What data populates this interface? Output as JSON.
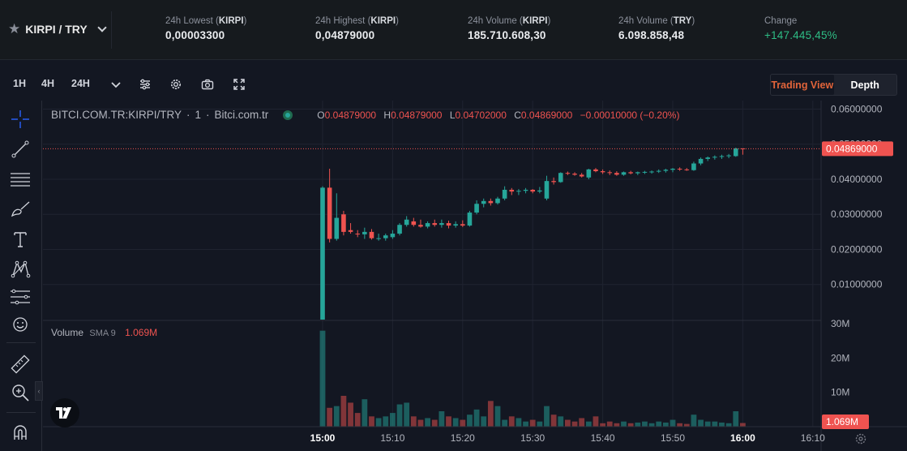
{
  "header": {
    "pair_label": "KIRPI / TRY",
    "stats": [
      {
        "label_prefix": "24h Lowest (",
        "label_unit": "KIRPI",
        "label_suffix": ")",
        "value": "0,00003300"
      },
      {
        "label_prefix": "24h Highest (",
        "label_unit": "KIRPI",
        "label_suffix": ")",
        "value": "0,04879000"
      },
      {
        "label_prefix": "24h Volume (",
        "label_unit": "KIRPI",
        "label_suffix": ")",
        "value": "185.710.608,30"
      },
      {
        "label_prefix": "24h Volume (",
        "label_unit": "TRY",
        "label_suffix": ")",
        "value": "6.098.858,48"
      },
      {
        "label_prefix": "Change",
        "label_unit": "",
        "label_suffix": "",
        "value": "+147.445,45%"
      }
    ]
  },
  "toolbar": {
    "intervals": [
      "1H",
      "4H",
      "24H"
    ],
    "icons": [
      "chevron-down-icon",
      "indicators-icon",
      "settings-icon",
      "camera-icon",
      "fullscreen-icon"
    ],
    "view_toggle": {
      "trading_view": "Trading View",
      "depth": "Depth"
    }
  },
  "left_tools": [
    "crosshair-icon",
    "trend-line-icon",
    "fib-icon",
    "brush-icon",
    "text-icon",
    "pattern-icon",
    "forecast-icon",
    "emoji-icon",
    "ruler-icon",
    "zoom-icon",
    "magnet-icon"
  ],
  "legend": {
    "symbol": "BITCI.COM.TR:KIRPI/TRY",
    "interval": "1",
    "source": "Bitci.com.tr",
    "o_label": "O",
    "o": "0.04879000",
    "h_label": "H",
    "h": "0.04879000",
    "l_label": "L",
    "l": "0.04702000",
    "c_label": "C",
    "c": "0.04869000",
    "change": "−0.00010000 (−0.20%)"
  },
  "volume_legend": {
    "label": "Volume",
    "sma": "SMA 9",
    "value": "1.069M"
  },
  "colors": {
    "up": "#26a69a",
    "down": "#ef5350",
    "accent": "#e2643a",
    "change_up": "#2ebd85"
  },
  "chart_data": {
    "type": "candlestick",
    "price_axis": {
      "ticks": [
        "0.06000000",
        "0.05000000",
        "0.04000000",
        "0.03000000",
        "0.02000000",
        "0.01000000"
      ],
      "ylim": [
        0,
        0.0615
      ],
      "last_price_label": "0.04869000",
      "last_price": 0.04869
    },
    "volume_axis": {
      "ticks": [
        "30M",
        "20M",
        "10M"
      ],
      "ylim": [
        0,
        31
      ],
      "last_volume_label": "1.069M"
    },
    "time_axis": {
      "ticks": [
        "15:00",
        "15:10",
        "15:20",
        "15:30",
        "15:40",
        "15:50",
        "16:00",
        "16:10"
      ],
      "bold_ticks": [
        "15:00",
        "16:00"
      ],
      "minutes": [
        0,
        10,
        20,
        30,
        40,
        50,
        60,
        70
      ]
    },
    "candles": [
      {
        "t": 0,
        "o": 0.0,
        "h": 0.038,
        "l": 0.0,
        "c": 0.0376,
        "v": 28.0
      },
      {
        "t": 1,
        "o": 0.0376,
        "h": 0.043,
        "l": 0.022,
        "c": 0.023,
        "v": 5.5
      },
      {
        "t": 2,
        "o": 0.023,
        "h": 0.036,
        "l": 0.0225,
        "c": 0.029,
        "v": 6.0
      },
      {
        "t": 3,
        "o": 0.03,
        "h": 0.031,
        "l": 0.024,
        "c": 0.025,
        "v": 9.0
      },
      {
        "t": 4,
        "o": 0.0255,
        "h": 0.0275,
        "l": 0.0245,
        "c": 0.025,
        "v": 7.0
      },
      {
        "t": 5,
        "o": 0.0245,
        "h": 0.0255,
        "l": 0.0235,
        "c": 0.0243,
        "v": 4.0
      },
      {
        "t": 6,
        "o": 0.0243,
        "h": 0.0262,
        "l": 0.023,
        "c": 0.025,
        "v": 8.0
      },
      {
        "t": 7,
        "o": 0.025,
        "h": 0.0258,
        "l": 0.0228,
        "c": 0.0232,
        "v": 3.0
      },
      {
        "t": 8,
        "o": 0.0232,
        "h": 0.0245,
        "l": 0.0225,
        "c": 0.0232,
        "v": 2.5
      },
      {
        "t": 9,
        "o": 0.0232,
        "h": 0.0245,
        "l": 0.0225,
        "c": 0.024,
        "v": 3.0
      },
      {
        "t": 10,
        "o": 0.0235,
        "h": 0.0255,
        "l": 0.023,
        "c": 0.0245,
        "v": 4.0
      },
      {
        "t": 11,
        "o": 0.0245,
        "h": 0.0275,
        "l": 0.024,
        "c": 0.027,
        "v": 6.5
      },
      {
        "t": 12,
        "o": 0.027,
        "h": 0.0295,
        "l": 0.0265,
        "c": 0.0285,
        "v": 7.0
      },
      {
        "t": 13,
        "o": 0.028,
        "h": 0.029,
        "l": 0.0265,
        "c": 0.027,
        "v": 3.0
      },
      {
        "t": 14,
        "o": 0.027,
        "h": 0.0285,
        "l": 0.0262,
        "c": 0.0265,
        "v": 2.0
      },
      {
        "t": 15,
        "o": 0.0265,
        "h": 0.028,
        "l": 0.026,
        "c": 0.0275,
        "v": 2.5
      },
      {
        "t": 16,
        "o": 0.0275,
        "h": 0.0285,
        "l": 0.0265,
        "c": 0.027,
        "v": 2.0
      },
      {
        "t": 17,
        "o": 0.027,
        "h": 0.0285,
        "l": 0.0262,
        "c": 0.0275,
        "v": 4.5
      },
      {
        "t": 18,
        "o": 0.0275,
        "h": 0.0282,
        "l": 0.026,
        "c": 0.0268,
        "v": 3.0
      },
      {
        "t": 19,
        "o": 0.0268,
        "h": 0.028,
        "l": 0.0262,
        "c": 0.0272,
        "v": 2.5
      },
      {
        "t": 20,
        "o": 0.0272,
        "h": 0.0283,
        "l": 0.0264,
        "c": 0.0268,
        "v": 2.0
      },
      {
        "t": 21,
        "o": 0.0268,
        "h": 0.031,
        "l": 0.0265,
        "c": 0.0305,
        "v": 3.5
      },
      {
        "t": 22,
        "o": 0.0305,
        "h": 0.034,
        "l": 0.03,
        "c": 0.033,
        "v": 5.0
      },
      {
        "t": 23,
        "o": 0.033,
        "h": 0.0345,
        "l": 0.032,
        "c": 0.0338,
        "v": 3.0
      },
      {
        "t": 24,
        "o": 0.0338,
        "h": 0.0345,
        "l": 0.0325,
        "c": 0.0332,
        "v": 7.5
      },
      {
        "t": 25,
        "o": 0.0332,
        "h": 0.035,
        "l": 0.0328,
        "c": 0.0345,
        "v": 6.0
      },
      {
        "t": 26,
        "o": 0.0345,
        "h": 0.038,
        "l": 0.034,
        "c": 0.037,
        "v": 2.0
      },
      {
        "t": 27,
        "o": 0.037,
        "h": 0.0375,
        "l": 0.0355,
        "c": 0.0365,
        "v": 3.0
      },
      {
        "t": 28,
        "o": 0.0365,
        "h": 0.0372,
        "l": 0.0355,
        "c": 0.0367,
        "v": 2.5
      },
      {
        "t": 29,
        "o": 0.0367,
        "h": 0.0375,
        "l": 0.036,
        "c": 0.037,
        "v": 1.5
      },
      {
        "t": 30,
        "o": 0.037,
        "h": 0.0372,
        "l": 0.036,
        "c": 0.0365,
        "v": 2.0
      },
      {
        "t": 31,
        "o": 0.0365,
        "h": 0.0378,
        "l": 0.036,
        "c": 0.0368,
        "v": 1.5
      },
      {
        "t": 32,
        "o": 0.0345,
        "h": 0.041,
        "l": 0.034,
        "c": 0.0395,
        "v": 6.0
      },
      {
        "t": 33,
        "o": 0.0395,
        "h": 0.0405,
        "l": 0.0385,
        "c": 0.0392,
        "v": 3.5
      },
      {
        "t": 34,
        "o": 0.0392,
        "h": 0.042,
        "l": 0.039,
        "c": 0.0418,
        "v": 3.0
      },
      {
        "t": 35,
        "o": 0.0418,
        "h": 0.0422,
        "l": 0.0412,
        "c": 0.0416,
        "v": 2.0
      },
      {
        "t": 36,
        "o": 0.0416,
        "h": 0.042,
        "l": 0.041,
        "c": 0.0413,
        "v": 1.5
      },
      {
        "t": 37,
        "o": 0.0413,
        "h": 0.0418,
        "l": 0.0405,
        "c": 0.0408,
        "v": 2.5
      },
      {
        "t": 38,
        "o": 0.0405,
        "h": 0.043,
        "l": 0.04,
        "c": 0.0428,
        "v": 1.5
      },
      {
        "t": 39,
        "o": 0.0428,
        "h": 0.0432,
        "l": 0.042,
        "c": 0.0423,
        "v": 3.0
      },
      {
        "t": 40,
        "o": 0.0423,
        "h": 0.0428,
        "l": 0.0415,
        "c": 0.042,
        "v": 1.0
      },
      {
        "t": 41,
        "o": 0.042,
        "h": 0.0425,
        "l": 0.0412,
        "c": 0.0418,
        "v": 1.5
      },
      {
        "t": 42,
        "o": 0.0418,
        "h": 0.0423,
        "l": 0.041,
        "c": 0.0413,
        "v": 1.0
      },
      {
        "t": 43,
        "o": 0.0413,
        "h": 0.0422,
        "l": 0.041,
        "c": 0.042,
        "v": 1.5
      },
      {
        "t": 44,
        "o": 0.042,
        "h": 0.0424,
        "l": 0.0414,
        "c": 0.0417,
        "v": 1.0
      },
      {
        "t": 45,
        "o": 0.0417,
        "h": 0.0422,
        "l": 0.0412,
        "c": 0.042,
        "v": 1.2
      },
      {
        "t": 46,
        "o": 0.042,
        "h": 0.0424,
        "l": 0.0415,
        "c": 0.0421,
        "v": 1.5
      },
      {
        "t": 47,
        "o": 0.0421,
        "h": 0.0425,
        "l": 0.0416,
        "c": 0.0422,
        "v": 1.0
      },
      {
        "t": 48,
        "o": 0.0422,
        "h": 0.0428,
        "l": 0.0418,
        "c": 0.0424,
        "v": 1.5
      },
      {
        "t": 49,
        "o": 0.0424,
        "h": 0.043,
        "l": 0.0419,
        "c": 0.0427,
        "v": 1.2
      },
      {
        "t": 50,
        "o": 0.0427,
        "h": 0.0432,
        "l": 0.042,
        "c": 0.043,
        "v": 2.0
      },
      {
        "t": 51,
        "o": 0.043,
        "h": 0.0434,
        "l": 0.0424,
        "c": 0.0428,
        "v": 1.0
      },
      {
        "t": 52,
        "o": 0.0428,
        "h": 0.0432,
        "l": 0.0424,
        "c": 0.0426,
        "v": 0.8
      },
      {
        "t": 53,
        "o": 0.0426,
        "h": 0.045,
        "l": 0.0424,
        "c": 0.0445,
        "v": 3.5
      },
      {
        "t": 54,
        "o": 0.0445,
        "h": 0.0462,
        "l": 0.044,
        "c": 0.0458,
        "v": 2.0
      },
      {
        "t": 55,
        "o": 0.0458,
        "h": 0.0465,
        "l": 0.0452,
        "c": 0.0462,
        "v": 1.5
      },
      {
        "t": 56,
        "o": 0.0462,
        "h": 0.0468,
        "l": 0.0456,
        "c": 0.0464,
        "v": 1.5
      },
      {
        "t": 57,
        "o": 0.0464,
        "h": 0.047,
        "l": 0.0458,
        "c": 0.0466,
        "v": 1.2
      },
      {
        "t": 58,
        "o": 0.0466,
        "h": 0.0472,
        "l": 0.046,
        "c": 0.0468,
        "v": 1.0
      },
      {
        "t": 59,
        "o": 0.0466,
        "h": 0.049,
        "l": 0.0464,
        "c": 0.0488,
        "v": 4.5
      },
      {
        "t": 60,
        "o": 0.0488,
        "h": 0.0488,
        "l": 0.047,
        "c": 0.0487,
        "v": 1.069
      }
    ]
  }
}
